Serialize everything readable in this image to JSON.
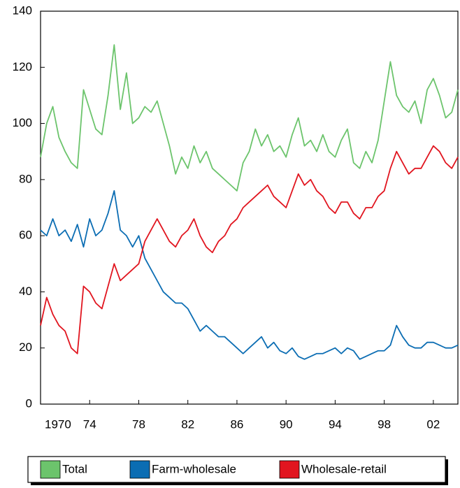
{
  "chart_data": {
    "type": "line",
    "x": [
      1970,
      1970.5,
      1971,
      1971.5,
      1972,
      1972.5,
      1973,
      1973.5,
      1974,
      1974.5,
      1975,
      1975.5,
      1976,
      1976.5,
      1977,
      1977.5,
      1978,
      1978.5,
      1979,
      1979.5,
      1980,
      1980.5,
      1981,
      1981.5,
      1982,
      1982.5,
      1983,
      1983.5,
      1984,
      1984.5,
      1985,
      1985.5,
      1986,
      1986.5,
      1987,
      1987.5,
      1988,
      1988.5,
      1989,
      1989.5,
      1990,
      1990.5,
      1991,
      1991.5,
      1992,
      1992.5,
      1993,
      1993.5,
      1994,
      1994.5,
      1995,
      1995.5,
      1996,
      1996.5,
      1997,
      1997.5,
      1998,
      1998.5,
      1999,
      1999.5,
      2000,
      2000.5,
      2001,
      2001.5,
      2002,
      2002.5,
      2003,
      2003.5,
      2004
    ],
    "series": [
      {
        "name": "Total",
        "color": "#6cc46c",
        "values": [
          88,
          100,
          106,
          95,
          90,
          86,
          84,
          112,
          105,
          98,
          96,
          110,
          128,
          105,
          118,
          100,
          102,
          106,
          104,
          108,
          100,
          92,
          82,
          88,
          84,
          92,
          86,
          90,
          84,
          82,
          80,
          78,
          76,
          86,
          90,
          98,
          92,
          96,
          90,
          92,
          88,
          96,
          102,
          92,
          94,
          90,
          96,
          90,
          88,
          94,
          98,
          86,
          84,
          90,
          86,
          94,
          108,
          122,
          110,
          106,
          104,
          108,
          100,
          112,
          116,
          110,
          102,
          104,
          112
        ]
      },
      {
        "name": "Farm-wholesale",
        "color": "#0b6db3",
        "values": [
          62,
          60,
          66,
          60,
          62,
          58,
          64,
          56,
          66,
          60,
          62,
          68,
          76,
          62,
          60,
          56,
          60,
          52,
          48,
          44,
          40,
          38,
          36,
          36,
          34,
          30,
          26,
          28,
          26,
          24,
          24,
          22,
          20,
          18,
          20,
          22,
          24,
          20,
          22,
          19,
          18,
          20,
          17,
          16,
          17,
          18,
          18,
          19,
          20,
          18,
          20,
          19,
          16,
          17,
          18,
          19,
          19,
          21,
          28,
          24,
          21,
          20,
          20,
          22,
          22,
          21,
          20,
          20,
          21
        ]
      },
      {
        "name": "Wholesale-retail",
        "color": "#e1151f",
        "values": [
          28,
          38,
          32,
          28,
          26,
          20,
          18,
          42,
          40,
          36,
          34,
          42,
          50,
          44,
          46,
          48,
          50,
          58,
          62,
          66,
          62,
          58,
          56,
          60,
          62,
          66,
          60,
          56,
          54,
          58,
          60,
          64,
          66,
          70,
          72,
          74,
          76,
          78,
          74,
          72,
          70,
          76,
          82,
          78,
          80,
          76,
          74,
          70,
          68,
          72,
          72,
          68,
          66,
          70,
          70,
          74,
          76,
          84,
          90,
          86,
          82,
          84,
          84,
          88,
          92,
          90,
          86,
          84,
          88
        ]
      }
    ],
    "xlim": [
      1970,
      2004
    ],
    "xticks": [
      {
        "value": 1970,
        "label": "1970"
      },
      {
        "value": 1974,
        "label": "74"
      },
      {
        "value": 1978,
        "label": "78"
      },
      {
        "value": 1982,
        "label": "82"
      },
      {
        "value": 1986,
        "label": "86"
      },
      {
        "value": 1990,
        "label": "90"
      },
      {
        "value": 1994,
        "label": "94"
      },
      {
        "value": 1998,
        "label": "98"
      },
      {
        "value": 2002,
        "label": "02"
      }
    ],
    "ylim": [
      0,
      140
    ],
    "yticks": [
      0,
      20,
      40,
      60,
      80,
      100,
      120,
      140
    ]
  }
}
